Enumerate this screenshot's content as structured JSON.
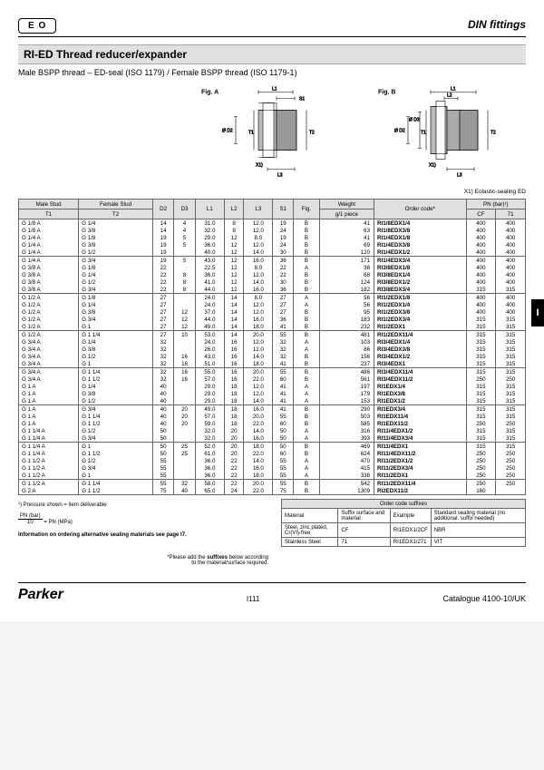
{
  "header": {
    "right": "DIN fittings",
    "logo": "E O"
  },
  "title": "RI-ED  Thread reducer/expander",
  "subtitle": "Male BSPP thread – ED-seal (ISO 1179) / Female BSPP thread (ISO 1179-1)",
  "figA": "Fig. A",
  "figB": "Fig. B",
  "figNote": "X1) Eolastic-sealing ED",
  "cols": {
    "t1h": "Male Stud",
    "t1": "T1",
    "t2h": "Female Stud",
    "t2": "T2",
    "d2": "D2",
    "d3": "D3",
    "l1": "L1",
    "l2": "L2",
    "l3": "L3",
    "s1": "S1",
    "fig": "Fig.",
    "wh": "Weight",
    "w": "g/1 piece",
    "oc": "Order code*",
    "pn": "PN (bar)¹)",
    "cf": "CF",
    "c71": "71"
  },
  "rows": [
    [
      "G 1/8 A",
      "G 1/4",
      "14",
      "4",
      "31.0",
      "8",
      "12.0",
      "19",
      "B",
      "41",
      "RI1/8EDX1/4",
      "400",
      "400"
    ],
    [
      "G 1/8 A",
      "G 3/8",
      "14",
      "4",
      "32.0",
      "8",
      "12.0",
      "24",
      "B",
      "63",
      "RI1/8EDX3/8",
      "400",
      "400"
    ],
    [
      "G 1/4 A",
      "G 1/8",
      "19",
      "5",
      "29.0",
      "12",
      "8.0",
      "19",
      "B",
      "41",
      "RI1/4EDX1/8",
      "400",
      "400"
    ],
    [
      "G 1/4 A",
      "G 3/8",
      "19",
      "5",
      "36.0",
      "12",
      "12.0",
      "24",
      "B",
      "69",
      "RI1/4EDX3/8",
      "400",
      "400"
    ],
    [
      "G 1/4 A",
      "G 1/2",
      "19",
      "",
      "40.0",
      "12",
      "14.0",
      "30",
      "B",
      "120",
      "RI1/4EDX1/2",
      "400",
      "400"
    ],
    [
      "G 1/4 A",
      "G 3/4",
      "19",
      "5",
      "43.0",
      "12",
      "16.0",
      "36",
      "B",
      "171",
      "RI1/4EDX3/4",
      "400",
      "400"
    ],
    [
      "G 3/8 A",
      "G 1/8",
      "22",
      "",
      "22.5",
      "12",
      "8.0",
      "22",
      "A",
      "38",
      "RI3/8EDX1/8",
      "400",
      "400"
    ],
    [
      "G 3/8 A",
      "G 1/4",
      "22",
      "8",
      "36.0",
      "12",
      "12.0",
      "22",
      "B",
      "68",
      "RI3/8EDX1/4",
      "400",
      "400"
    ],
    [
      "G 3/8 A",
      "G 1/2",
      "22",
      "8",
      "41.0",
      "12",
      "14.0",
      "30",
      "B",
      "124",
      "RI3/8EDX1/2",
      "400",
      "400"
    ],
    [
      "G 3/8 A",
      "G 3/4",
      "22",
      "8",
      "44.0",
      "12",
      "16.0",
      "36",
      "B",
      "182",
      "RI3/8EDX3/4",
      "315",
      "315"
    ],
    [
      "G 1/2 A",
      "G 1/8",
      "27",
      "",
      "24.0",
      "14",
      "8.0",
      "27",
      "A",
      "56",
      "RI1/2EDX1/8",
      "400",
      "400"
    ],
    [
      "G 1/2 A",
      "G 1/4",
      "27",
      "",
      "24.0",
      "14",
      "12.0",
      "27",
      "A",
      "56",
      "RI1/2EDX1/4",
      "400",
      "400"
    ],
    [
      "G 1/2 A",
      "G 3/8",
      "27",
      "12",
      "37.0",
      "14",
      "12.0",
      "27",
      "B",
      "95",
      "RI1/2EDX3/8",
      "400",
      "400"
    ],
    [
      "G 1/2 A",
      "G 3/4",
      "27",
      "12",
      "44.0",
      "14",
      "16.0",
      "36",
      "B",
      "183",
      "RI1/2EDX3/4",
      "315",
      "315"
    ],
    [
      "G 1/2 A",
      "G 1",
      "27",
      "12",
      "49.0",
      "14",
      "18.0",
      "41",
      "B",
      "232",
      "RI1/2EDX1",
      "315",
      "315"
    ],
    [
      "G 1/2 A",
      "G 1 1/4",
      "27",
      "10",
      "53.0",
      "14",
      "20.0",
      "55",
      "B",
      "481",
      "RI1/2EDX11/4",
      "315",
      "315"
    ],
    [
      "G 3/4 A",
      "G 1/4",
      "32",
      "",
      "24.0",
      "16",
      "12.0",
      "32",
      "A",
      "103",
      "RI3/4EDX1/4",
      "315",
      "315"
    ],
    [
      "G 3/4 A",
      "G 3/8",
      "32",
      "",
      "26.0",
      "16",
      "12.0",
      "32",
      "A",
      "86",
      "RI3/4EDX3/8",
      "315",
      "315"
    ],
    [
      "G 3/4 A",
      "G 1/2",
      "32",
      "16",
      "43.0",
      "16",
      "14.0",
      "32",
      "B",
      "156",
      "RI3/4EDX1/2",
      "315",
      "315"
    ],
    [
      "G 3/4 A",
      "G 1",
      "32",
      "16",
      "51.0",
      "16",
      "18.0",
      "41",
      "B",
      "237",
      "RI3/4EDX1",
      "315",
      "315"
    ],
    [
      "G 3/4 A",
      "G 1 1/4",
      "32",
      "16",
      "55.0",
      "16",
      "20.0",
      "55",
      "B",
      "486",
      "RI3/4EDX11/4",
      "315",
      "315"
    ],
    [
      "G 3/4 A",
      "G 1 1/2",
      "32",
      "16",
      "57.0",
      "16",
      "22.0",
      "60",
      "B",
      "561",
      "RI3/4EDX11/2",
      "250",
      "250"
    ],
    [
      "G 1 A",
      "G 1/4",
      "40",
      "",
      "29.0",
      "18",
      "12.0",
      "41",
      "A",
      "197",
      "RI1EDX1/4",
      "315",
      "315"
    ],
    [
      "G 1 A",
      "G 3/8",
      "40",
      "",
      "29.0",
      "18",
      "12.0",
      "41",
      "A",
      "179",
      "RI1EDX3/8",
      "315",
      "315"
    ],
    [
      "G 1 A",
      "G 1/2",
      "40",
      "",
      "29.0",
      "18",
      "14.0",
      "41",
      "A",
      "153",
      "RI1EDX1/2",
      "315",
      "315"
    ],
    [
      "G 1 A",
      "G 3/4",
      "40",
      "20",
      "49.0",
      "18",
      "16.0",
      "41",
      "B",
      "290",
      "RI1EDX3/4",
      "315",
      "315"
    ],
    [
      "G 1 A",
      "G 1 1/4",
      "40",
      "20",
      "57.0",
      "18",
      "20.0",
      "55",
      "B",
      "503",
      "RI1EDX11/4",
      "315",
      "315"
    ],
    [
      "G 1 A",
      "G 1 1/2",
      "40",
      "20",
      "59.0",
      "18",
      "22.0",
      "60",
      "B",
      "585",
      "RI1EDX11/2",
      "250",
      "250"
    ],
    [
      "G 1 1/4 A",
      "G 1/2",
      "50",
      "",
      "32.0",
      "20",
      "14.0",
      "50",
      "A",
      "316",
      "RI11/4EDX1/2",
      "315",
      "315"
    ],
    [
      "G 1 1/4 A",
      "G 3/4",
      "50",
      "",
      "32.0",
      "20",
      "16.0",
      "50",
      "A",
      "393",
      "RI11/4EDX3/4",
      "315",
      "315"
    ],
    [
      "G 1 1/4 A",
      "G 1",
      "50",
      "25",
      "52.0",
      "20",
      "18.0",
      "50",
      "B",
      "469",
      "RI11/4EDX1",
      "315",
      "315"
    ],
    [
      "G 1 1/4 A",
      "G 1 1/2",
      "50",
      "25",
      "61.0",
      "20",
      "22.0",
      "60",
      "B",
      "624",
      "RI11/4EDX11/2",
      "250",
      "250"
    ],
    [
      "G 1 1/2 A",
      "G 1/2",
      "55",
      "",
      "36.0",
      "22",
      "14.0",
      "55",
      "A",
      "470",
      "RI11/2EDX1/2",
      "250",
      "250"
    ],
    [
      "G 1 1/2 A",
      "G 3/4",
      "55",
      "",
      "36.0",
      "22",
      "16.0",
      "55",
      "A",
      "415",
      "RI11/2EDX3/4",
      "250",
      "250"
    ],
    [
      "G 1 1/2 A",
      "G 1",
      "55",
      "",
      "36.0",
      "22",
      "18.0",
      "55",
      "A",
      "338",
      "RI11/2EDX1",
      "250",
      "250"
    ],
    [
      "G 1 1/2 A",
      "G 1 1/4",
      "55",
      "32",
      "58.0",
      "22",
      "20.0",
      "55",
      "B",
      "542",
      "RI11/2EDX11/4",
      "250",
      "250"
    ],
    [
      "G 2 A",
      "G 1 1/2",
      "75",
      "40",
      "65.0",
      "24",
      "22.0",
      "75",
      "B",
      "1309",
      "RI2EDX11/2",
      "160",
      ""
    ]
  ],
  "groups": [
    0,
    5,
    10,
    15,
    20,
    25,
    30,
    35,
    37
  ],
  "note1": "¹) Pressure shown = item deliverable",
  "note2a": "PN (bar)",
  "note2b": "10",
  "note2c": "= PN (MPa)",
  "infoLine": "Information on ordering alternative sealing materials see page I7.",
  "sufTitle": "Order code suffixes",
  "sufCols": [
    "Material",
    "Suffix surface and material",
    "Example",
    "Standard sealing material (no additional. suffix needed)"
  ],
  "sufRows": [
    [
      "Steel, zinc plated, Cr(VI)-free",
      "CF",
      "RI1EDX1/2CF",
      "NBR"
    ],
    [
      "Stainless Steel",
      "71",
      "RI1EDX1/271",
      "VIT"
    ]
  ],
  "sufNote": "*Please add the <b>suffixes</b> below according<br>to the material/surface required.",
  "footer": {
    "brand": "Parker",
    "mid": "I111",
    "cat": "Catalogue 4100-10/UK"
  },
  "sideTab": "I"
}
